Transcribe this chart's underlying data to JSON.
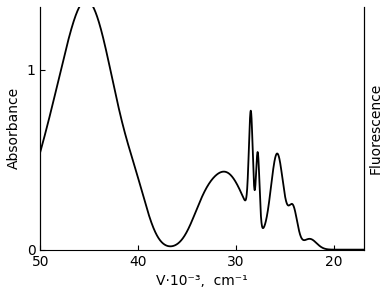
{
  "x_min": 50,
  "x_max": 17,
  "y_min": 0,
  "y_max": 1.35,
  "x_ticks": [
    50,
    40,
    30,
    20
  ],
  "y_ticks": [
    0,
    1
  ],
  "xlabel": "V·10⁻³,  cm⁻¹",
  "ylabel_left": "Absorbance",
  "ylabel_right": "Fluorescence",
  "background_color": "#ffffff",
  "line_color": "#000000",
  "line_width": 1.3
}
